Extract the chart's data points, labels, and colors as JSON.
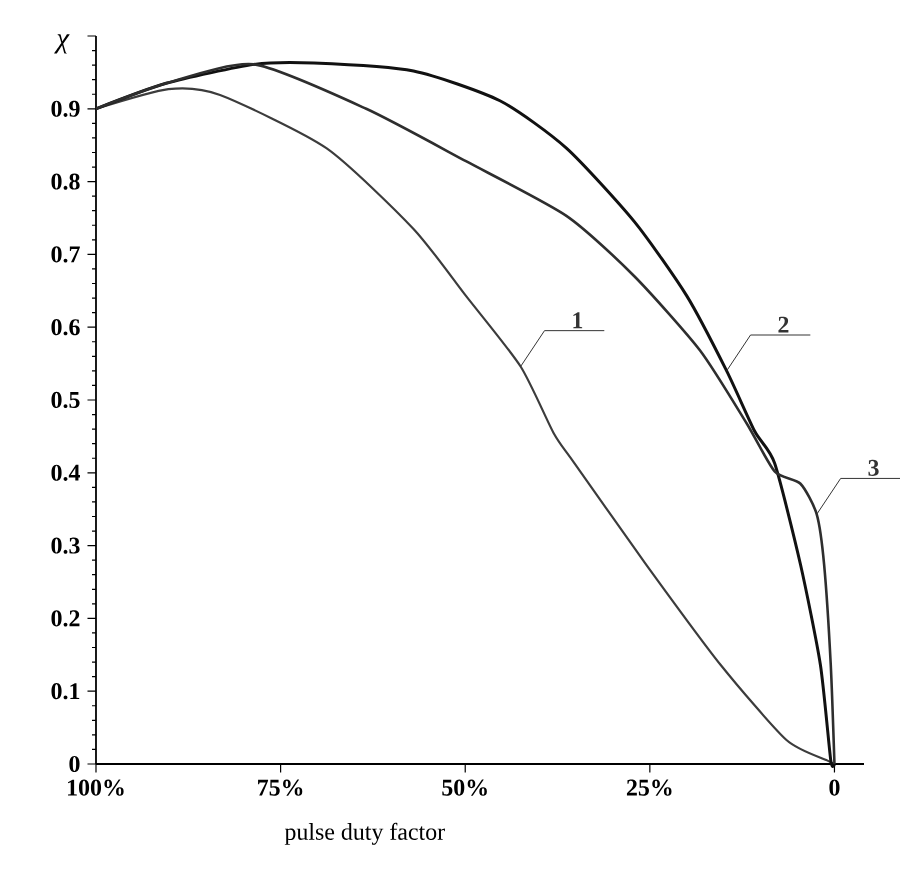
{
  "chart_data": {
    "type": "line",
    "xlabel": "pulse duty factor",
    "ylabel": "χ",
    "xlim": [
      100,
      -4
    ],
    "ylim": [
      0,
      1.0
    ],
    "xticks": [
      {
        "value": 100,
        "label": "100%"
      },
      {
        "value": 75,
        "label": "75%"
      },
      {
        "value": 50,
        "label": "50%"
      },
      {
        "value": 25,
        "label": "25%"
      },
      0
    ],
    "yticks": [
      0,
      0.1,
      0.2,
      0.3,
      0.4,
      0.5,
      0.6,
      0.7,
      0.8,
      0.9,
      {
        "value": 1.0,
        "label": null
      }
    ],
    "grid": false,
    "marker": "none",
    "line_style": "solid",
    "series": [
      {
        "color": "#3c3c3c",
        "x": [
          100,
          90.2,
          83.2,
          68.8,
          57,
          49.9,
          42.5,
          38,
          35.2,
          25.5,
          15.4,
          6.5,
          1,
          0
        ],
        "values": [
          0.9,
          0.927,
          0.919,
          0.846,
          0.735,
          0.643,
          0.546,
          0.454,
          0.413,
          0.274,
          0.136,
          0.033,
          0.005,
          0
        ]
      },
      {
        "color": "#111111",
        "x": [
          100,
          90.5,
          78.6,
          70.5,
          57,
          45.3,
          36.3,
          27.1,
          20,
          14.6,
          10.8,
          8.1,
          4.6,
          1.9,
          0.5,
          0
        ],
        "values": [
          0.9,
          0.935,
          0.961,
          0.963,
          0.952,
          0.911,
          0.846,
          0.745,
          0.643,
          0.54,
          0.457,
          0.413,
          0.274,
          0.136,
          0.005,
          0
        ]
      },
      {
        "color": "#2e2e2e",
        "x": [
          100,
          90.5,
          78.6,
          63.4,
          49.9,
          36.3,
          27.1,
          18.2,
          11.9,
          8.1,
          4.6,
          2.4,
          1.4,
          0.5,
          0
        ],
        "values": [
          0.9,
          0.935,
          0.961,
          0.9,
          0.828,
          0.753,
          0.67,
          0.568,
          0.468,
          0.402,
          0.385,
          0.343,
          0.274,
          0.136,
          0
        ]
      }
    ],
    "annotations": [
      {
        "text": "1",
        "x": 42.5,
        "y": 0.546
      },
      {
        "text": "2",
        "x": 14.6,
        "y": 0.54
      },
      {
        "text": "3",
        "x": 2.4,
        "y": 0.343
      }
    ]
  }
}
